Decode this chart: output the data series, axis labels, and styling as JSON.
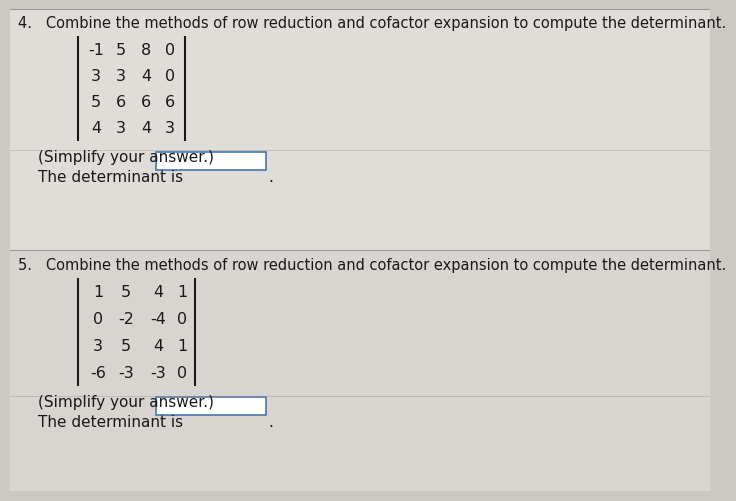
{
  "bg_color": "#ccc8c4",
  "section4_bg": "#e0dcd8",
  "section5_bg": "#d8d4d0",
  "title4": "4.   Combine the methods of row reduction and cofactor expansion to compute the determinant.",
  "matrix4": [
    [
      "-1",
      "5",
      "8",
      "0"
    ],
    [
      "3",
      "3",
      "4",
      "0"
    ],
    [
      "5",
      "6",
      "6",
      "6"
    ],
    [
      "4",
      "3",
      "4",
      "3"
    ]
  ],
  "det_label4": "The determinant is",
  "simplify4": "(Simplify your answer.)",
  "title5": "5.   Combine the methods of row reduction and cofactor expansion to compute the determinant.",
  "matrix5": [
    [
      "1",
      "5",
      "4",
      "1"
    ],
    [
      "0",
      "-2",
      "-4",
      "0"
    ],
    [
      "3",
      "5",
      "4",
      "1"
    ],
    [
      "-6",
      "-3",
      "-3",
      "0"
    ]
  ],
  "det_label5": "The determinant is",
  "simplify5": "(Simplify your answer.)",
  "font_size_title": 10.5,
  "font_size_matrix": 11.5,
  "font_size_det": 11,
  "text_color": "#1a1a1a",
  "separator_color": "#999999",
  "bracket_color": "#1a1a1a",
  "box_edge_color": "#4477aa"
}
